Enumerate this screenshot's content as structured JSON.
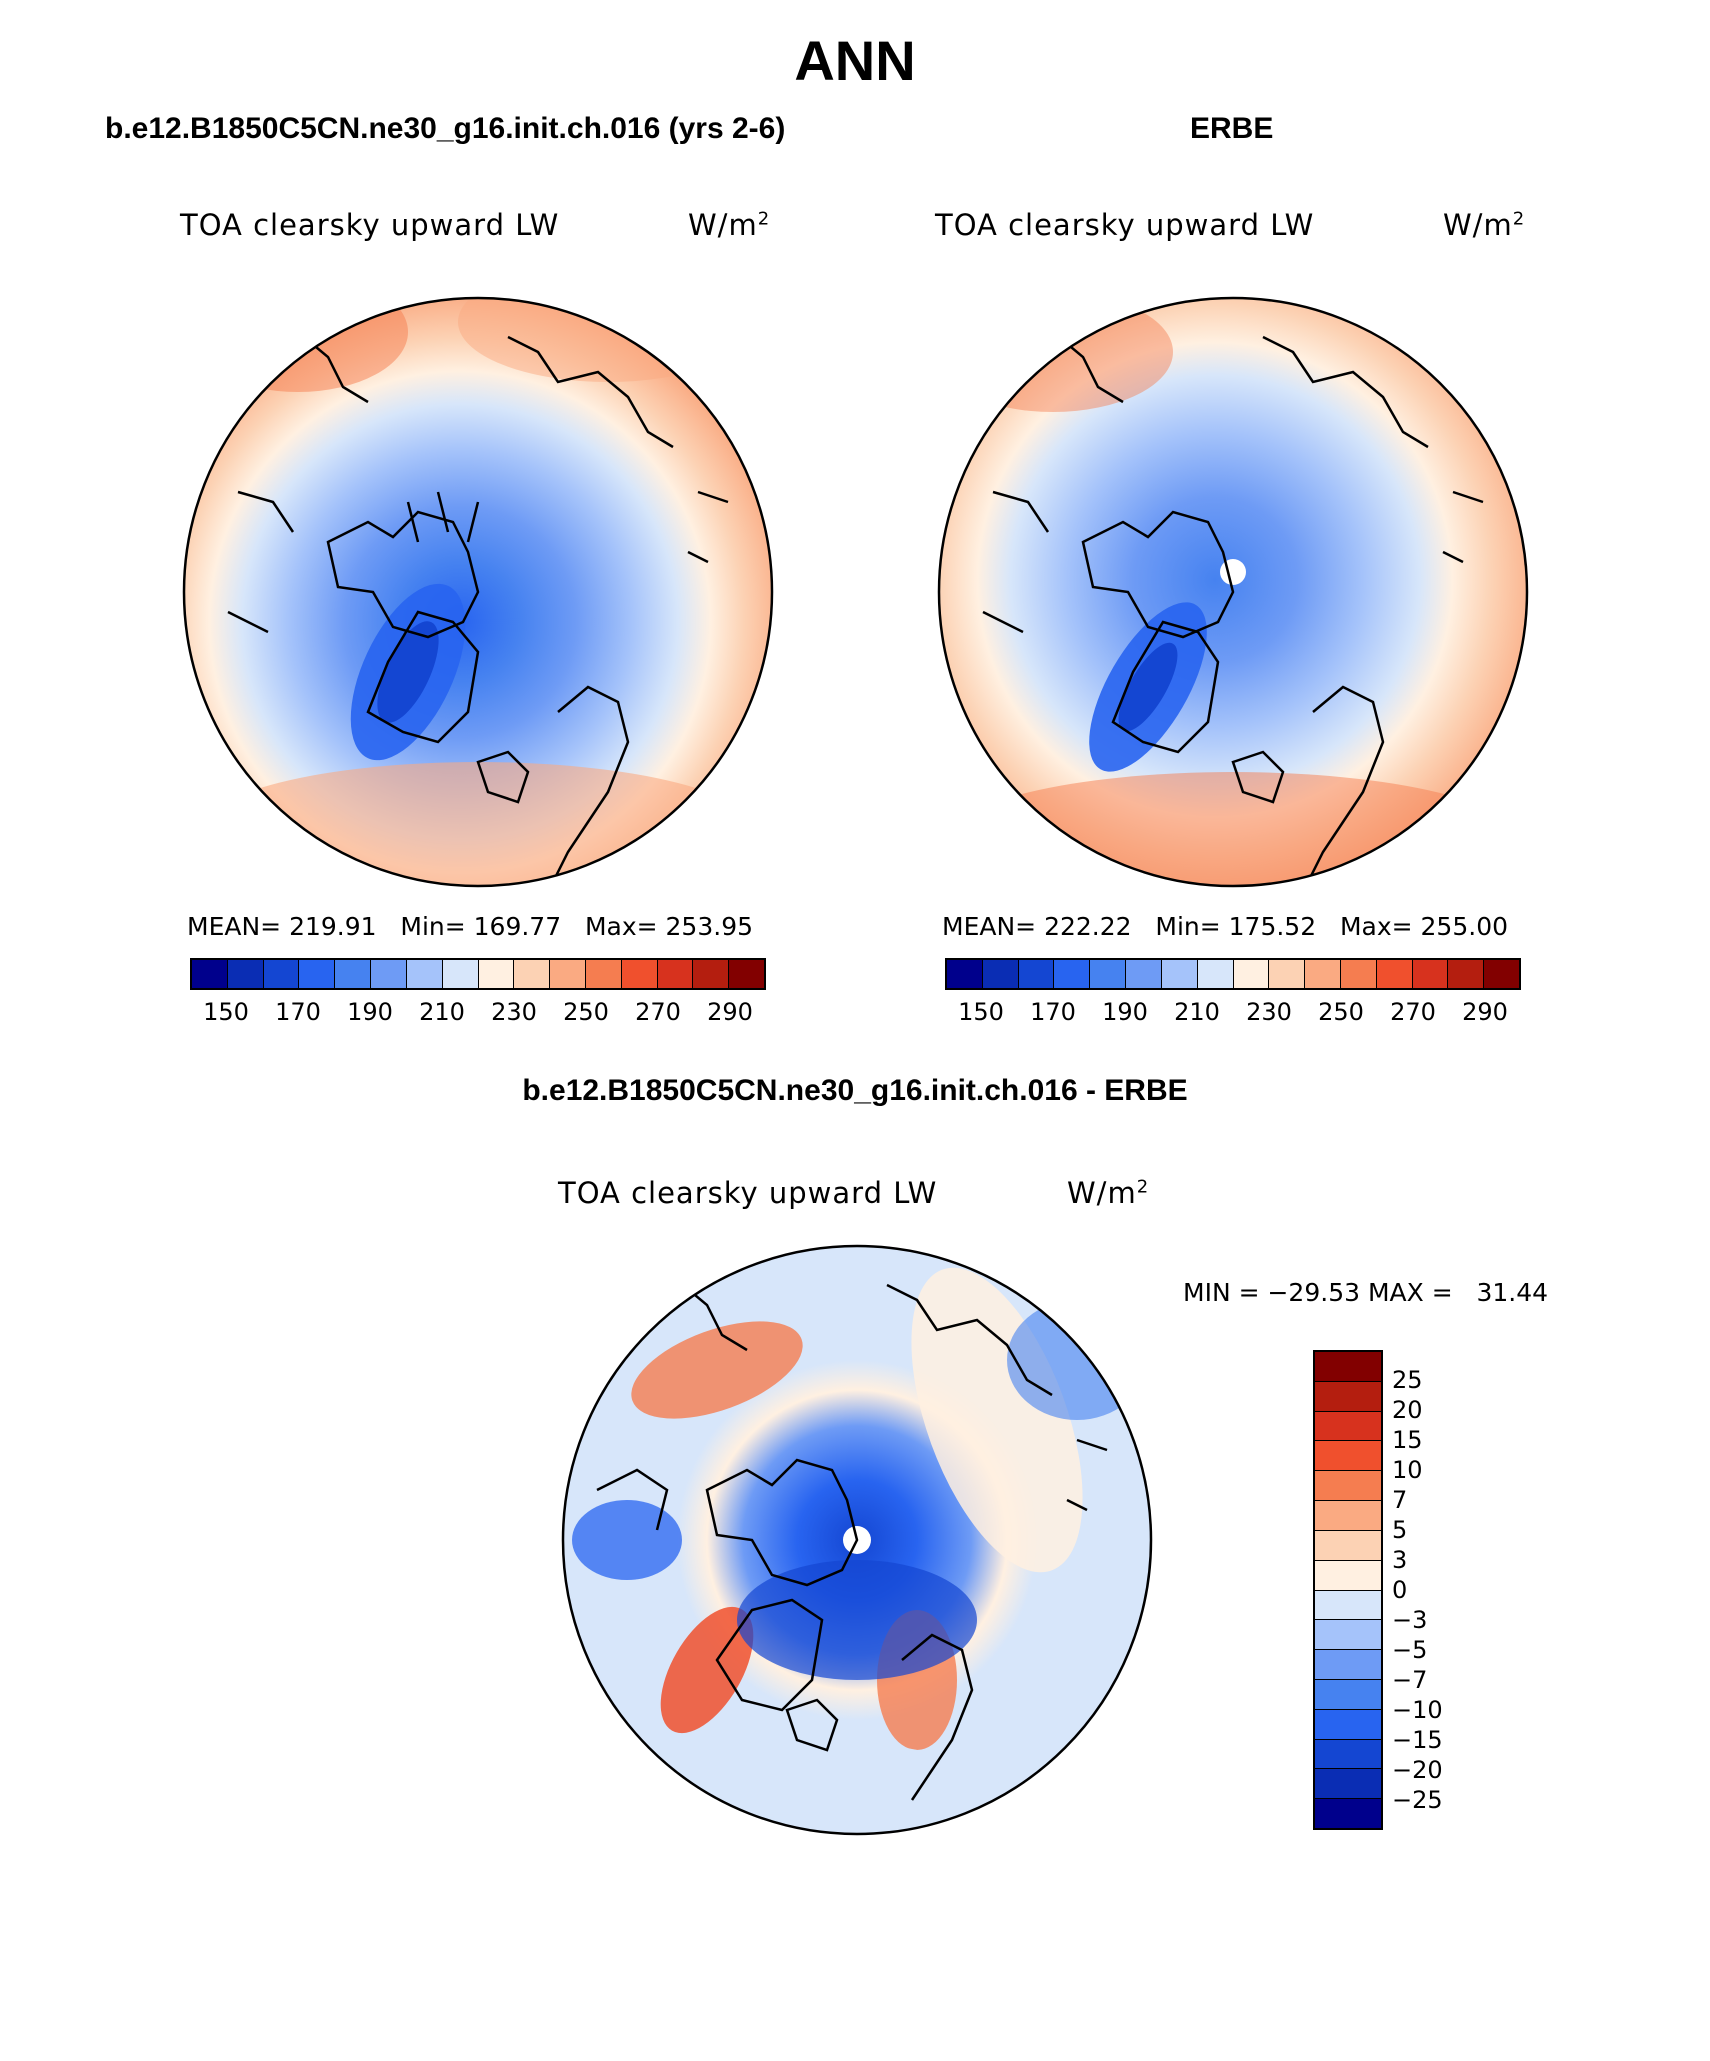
{
  "title": "ANN",
  "panels": {
    "model": {
      "header": "b.e12.B1850C5CN.ne30_g16.init.ch.016 (yrs 2-6)",
      "variable": "TOA clearsky upward LW",
      "units": "W/m",
      "units_sup": "2",
      "stats": "MEAN= 219.91   Min= 169.77   Max= 253.95",
      "mean": 219.91,
      "min": 169.77,
      "max": 253.95
    },
    "obs": {
      "header": "ERBE",
      "variable": "TOA clearsky upward LW",
      "units": "W/m",
      "units_sup": "2",
      "stats": "MEAN= 222.22   Min= 175.52   Max= 255.00",
      "mean": 222.22,
      "min": 175.52,
      "max": 255.0
    },
    "diff": {
      "header": "b.e12.B1850C5CN.ne30_g16.init.ch.016 - ERBE",
      "variable": "TOA clearsky upward LW",
      "units": "W/m",
      "units_sup": "2",
      "stats": "MIN = −29.53 MAX =   31.44",
      "min": -29.53,
      "max": 31.44
    }
  },
  "colorbar_abs": {
    "tick_labels": [
      "150",
      "170",
      "190",
      "210",
      "230",
      "250",
      "270",
      "290"
    ],
    "colors": [
      "#00008c",
      "#0a2db4",
      "#1446d2",
      "#2864f0",
      "#4682f0",
      "#6e9bf5",
      "#a5c3fa",
      "#d7e6fa",
      "#fff0e1",
      "#fcd2b4",
      "#faaa82",
      "#f57d50",
      "#f0502d",
      "#d7321e",
      "#b41e0f",
      "#820000"
    ]
  },
  "colorbar_diff": {
    "tick_labels": [
      "25",
      "20",
      "15",
      "10",
      "7",
      "5",
      "3",
      "0",
      "−3",
      "−5",
      "−7",
      "−10",
      "−15",
      "−20",
      "−25"
    ],
    "colors": [
      "#820000",
      "#b41e0f",
      "#d7321e",
      "#f0502d",
      "#f57d50",
      "#faaa82",
      "#fcd2b4",
      "#fff0e1",
      "#d7e6fa",
      "#a5c3fa",
      "#6e9bf5",
      "#4682f0",
      "#2864f0",
      "#1446d2",
      "#0a2db4",
      "#00008c"
    ]
  }
}
